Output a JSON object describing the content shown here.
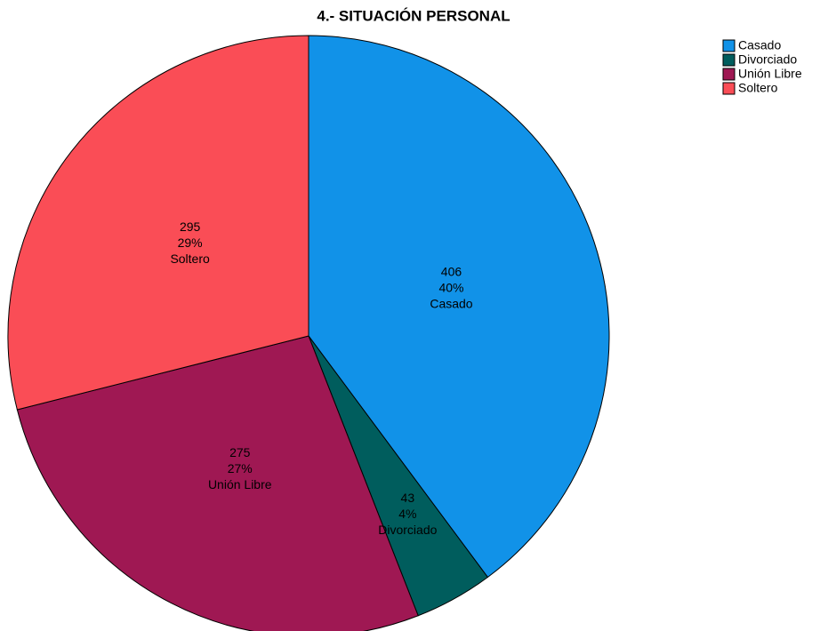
{
  "chart_data": {
    "type": "pie",
    "title": "4.- SITUACIÓN PERSONAL",
    "categories": [
      "Casado",
      "Divorciado",
      "Unión Libre",
      "Soltero"
    ],
    "values": [
      406,
      43,
      275,
      295
    ],
    "percent_labels": [
      "40%",
      "4%",
      "27%",
      "29%"
    ],
    "colors": [
      "#1192e8",
      "#005d5d",
      "#9f1853",
      "#fa4d56"
    ],
    "legend": "top-right"
  }
}
